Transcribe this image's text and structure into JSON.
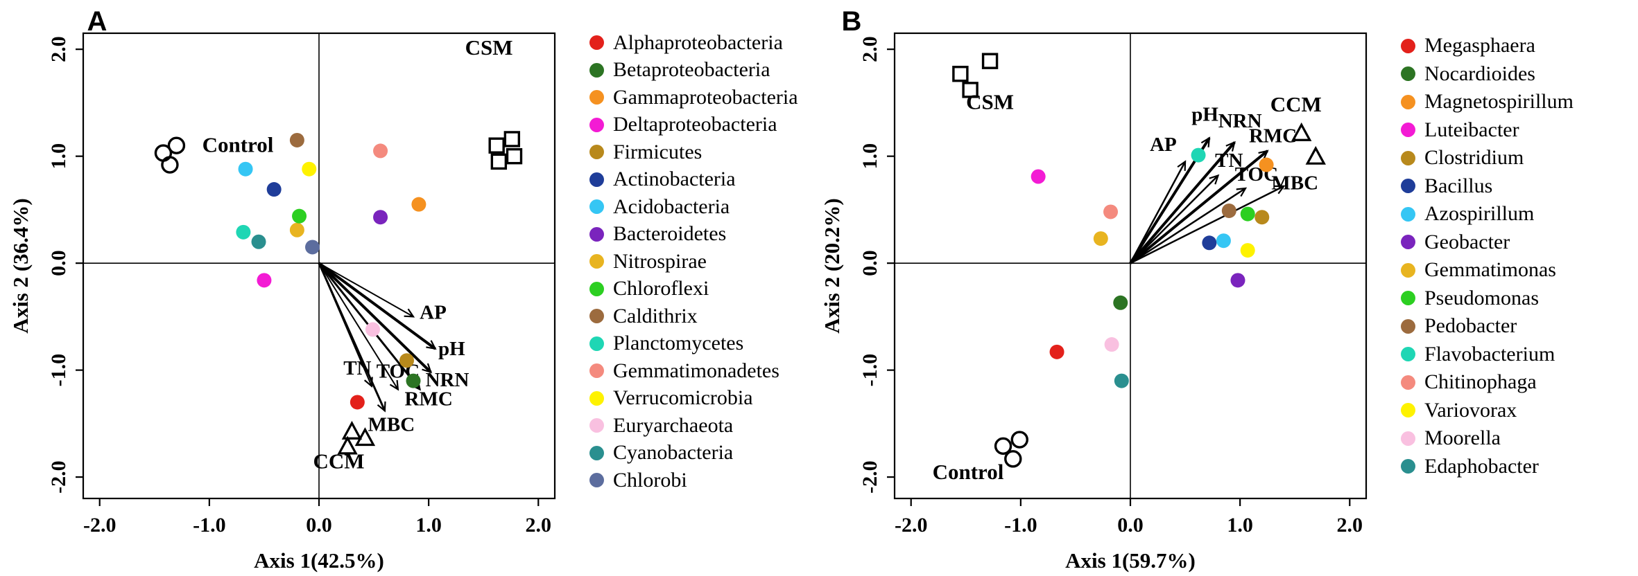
{
  "styles": {
    "background": "#ffffff",
    "arrow_label_color": "#2222cb",
    "marker_outline_color": "#000000"
  },
  "chart_data": [
    {
      "type": "scatter",
      "panel_label": "A",
      "xlabel": "Axis 1(42.5%)",
      "ylabel": "Axis 2 (36.4%)",
      "xlim": [
        -2.15,
        2.15
      ],
      "ylim": [
        -2.2,
        2.15
      ],
      "grid": false,
      "ticks": [
        -2,
        -1,
        0,
        1,
        2
      ],
      "tick_labels": [
        "-2.0",
        "-1.0",
        "0.0",
        "1.0",
        "2.0"
      ],
      "groups": [
        {
          "name": "Control",
          "marker": "circle",
          "label_pos": [
            -0.74,
            1.04
          ],
          "points": [
            [
              -1.42,
              1.03
            ],
            [
              -1.3,
              1.1
            ],
            [
              -1.36,
              0.92
            ]
          ]
        },
        {
          "name": "CSM",
          "marker": "square",
          "label_pos": [
            1.55,
            1.95
          ],
          "points": [
            [
              1.62,
              1.1
            ],
            [
              1.76,
              1.16
            ],
            [
              1.64,
              0.95
            ],
            [
              1.78,
              1.0
            ]
          ]
        },
        {
          "name": "CCM",
          "marker": "triangle",
          "label_pos": [
            0.18,
            -1.92
          ],
          "points": [
            [
              0.3,
              -1.58
            ],
            [
              0.42,
              -1.64
            ],
            [
              0.26,
              -1.72
            ]
          ]
        }
      ],
      "arrows": [
        {
          "label": "AP",
          "tip": [
            0.86,
            -0.5
          ],
          "width": 2,
          "label_pos": [
            1.04,
            -0.52
          ]
        },
        {
          "label": "pH",
          "tip": [
            1.06,
            -0.8
          ],
          "width": 4,
          "label_pos": [
            1.21,
            -0.86
          ]
        },
        {
          "label": "NRN",
          "tip": [
            1.02,
            -1.02
          ],
          "width": 4,
          "label_pos": [
            1.17,
            -1.15
          ]
        },
        {
          "label": "RMC",
          "tip": [
            0.92,
            -1.18
          ],
          "width": 3,
          "label_pos": [
            1.0,
            -1.33
          ]
        },
        {
          "label": "MBC",
          "tip": [
            0.6,
            -1.38
          ],
          "width": 3,
          "label_pos": [
            0.66,
            -1.57
          ]
        },
        {
          "label": "TOC",
          "tip": [
            0.72,
            -1.18
          ],
          "width": 2,
          "label_pos": [
            0.72,
            -1.07
          ]
        },
        {
          "label": "TN",
          "tip": [
            0.48,
            -1.15
          ],
          "width": 2,
          "label_pos": [
            0.35,
            -1.04
          ]
        }
      ],
      "taxa": [
        {
          "name": "Alphaproteobacteria",
          "color": "#e3211b",
          "x": 0.35,
          "y": -1.3
        },
        {
          "name": "Betaproteobacteria",
          "color": "#2c7423",
          "x": 0.86,
          "y": -1.1
        },
        {
          "name": "Gammaproteobacteria",
          "color": "#f59120",
          "x": 0.91,
          "y": 0.55
        },
        {
          "name": "Deltaproteobacteria",
          "color": "#f31bd4",
          "x": -0.5,
          "y": -0.16
        },
        {
          "name": "Firmicutes",
          "color": "#b8891c",
          "x": 0.8,
          "y": -0.91
        },
        {
          "name": "Actinobacteria",
          "color": "#1f3d99",
          "x": -0.41,
          "y": 0.69
        },
        {
          "name": "Acidobacteria",
          "color": "#35c6f4",
          "x": -0.67,
          "y": 0.88
        },
        {
          "name": "Bacteroidetes",
          "color": "#7a24bd",
          "x": 0.56,
          "y": 0.43
        },
        {
          "name": "Nitrospirae",
          "color": "#e8b420",
          "x": -0.2,
          "y": 0.31
        },
        {
          "name": "Chloroflexi",
          "color": "#2ccf21",
          "x": -0.18,
          "y": 0.44
        },
        {
          "name": "Caldithrix",
          "color": "#9c6b3e",
          "x": -0.2,
          "y": 1.15
        },
        {
          "name": "Planctomycetes",
          "color": "#1fd6b4",
          "x": -0.69,
          "y": 0.29
        },
        {
          "name": "Gemmatimonadetes",
          "color": "#f48a7e",
          "x": 0.56,
          "y": 1.05
        },
        {
          "name": "Verrucomicrobia",
          "color": "#fef200",
          "x": -0.09,
          "y": 0.88
        },
        {
          "name": "Euryarchaeota",
          "color": "#f9c0e0",
          "x": 0.49,
          "y": -0.62
        },
        {
          "name": "Cyanobacteria",
          "color": "#2a8f8f",
          "x": -0.55,
          "y": 0.2
        },
        {
          "name": "Chlorobi",
          "color": "#5c6d9e",
          "x": -0.06,
          "y": 0.15
        }
      ]
    },
    {
      "type": "scatter",
      "panel_label": "B",
      "xlabel": "Axis 1(59.7%)",
      "ylabel": "Axis 2 (20.2%)",
      "xlim": [
        -2.15,
        2.15
      ],
      "ylim": [
        -2.2,
        2.15
      ],
      "grid": false,
      "ticks": [
        -2,
        -1,
        0,
        1,
        2
      ],
      "tick_labels": [
        "-2.0",
        "-1.0",
        "0.0",
        "1.0",
        "2.0"
      ],
      "groups": [
        {
          "name": "CSM",
          "marker": "square",
          "label_pos": [
            -1.28,
            1.44
          ],
          "points": [
            [
              -1.55,
              1.77
            ],
            [
              -1.28,
              1.89
            ],
            [
              -1.46,
              1.62
            ]
          ]
        },
        {
          "name": "CCM",
          "marker": "triangle",
          "label_pos": [
            1.51,
            1.42
          ],
          "points": [
            [
              1.56,
              1.21
            ],
            [
              1.69,
              0.99
            ]
          ]
        },
        {
          "name": "Control",
          "marker": "circle",
          "label_pos": [
            -1.48,
            -2.02
          ],
          "points": [
            [
              -1.16,
              -1.71
            ],
            [
              -1.01,
              -1.65
            ],
            [
              -1.07,
              -1.83
            ]
          ]
        }
      ],
      "arrows": [
        {
          "label": "AP",
          "tip": [
            0.5,
            0.95
          ],
          "width": 2.5,
          "label_pos": [
            0.3,
            1.05
          ]
        },
        {
          "label": "pH",
          "tip": [
            0.72,
            1.17
          ],
          "width": 4,
          "label_pos": [
            0.68,
            1.33
          ]
        },
        {
          "label": "NRN",
          "tip": [
            0.95,
            1.13
          ],
          "width": 4,
          "label_pos": [
            1.0,
            1.27
          ]
        },
        {
          "label": "RMC",
          "tip": [
            1.25,
            1.05
          ],
          "width": 4,
          "label_pos": [
            1.3,
            1.13
          ]
        },
        {
          "label": "TN",
          "tip": [
            0.8,
            0.82
          ],
          "width": 2.5,
          "label_pos": [
            0.9,
            0.9
          ]
        },
        {
          "label": "TOC",
          "tip": [
            1.05,
            0.7
          ],
          "width": 2.5,
          "label_pos": [
            1.15,
            0.77
          ]
        },
        {
          "label": "MBC",
          "tip": [
            1.4,
            0.72
          ],
          "width": 2.5,
          "label_pos": [
            1.5,
            0.69
          ]
        }
      ],
      "taxa": [
        {
          "name": "Megasphaera",
          "color": "#e3211b",
          "x": -0.67,
          "y": -0.83
        },
        {
          "name": "Nocardioides",
          "color": "#2c7423",
          "x": -0.09,
          "y": -0.37
        },
        {
          "name": "Magnetospirillum",
          "color": "#f59120",
          "x": 1.24,
          "y": 0.92
        },
        {
          "name": "Luteibacter",
          "color": "#f31bd4",
          "x": -0.84,
          "y": 0.81
        },
        {
          "name": "Clostridium",
          "color": "#b8891c",
          "x": 1.2,
          "y": 0.43
        },
        {
          "name": "Bacillus",
          "color": "#1f3d99",
          "x": 0.72,
          "y": 0.19
        },
        {
          "name": "Azospirillum",
          "color": "#35c6f4",
          "x": 0.85,
          "y": 0.21
        },
        {
          "name": "Geobacter",
          "color": "#7a24bd",
          "x": 0.98,
          "y": -0.16
        },
        {
          "name": "Gemmatimonas",
          "color": "#e8b420",
          "x": -0.27,
          "y": 0.23
        },
        {
          "name": "Pseudomonas",
          "color": "#2ccf21",
          "x": 1.07,
          "y": 0.46
        },
        {
          "name": "Pedobacter",
          "color": "#9c6b3e",
          "x": 0.9,
          "y": 0.49
        },
        {
          "name": "Flavobacterium",
          "color": "#1fd6b4",
          "x": 0.62,
          "y": 1.01
        },
        {
          "name": "Chitinophaga",
          "color": "#f48a7e",
          "x": -0.18,
          "y": 0.48
        },
        {
          "name": "Variovorax",
          "color": "#fef200",
          "x": 1.07,
          "y": 0.12
        },
        {
          "name": "Moorella",
          "color": "#f9c0e0",
          "x": -0.17,
          "y": -0.76
        },
        {
          "name": "Edaphobacter",
          "color": "#2a8f8f",
          "x": -0.08,
          "y": -1.1
        }
      ]
    }
  ]
}
